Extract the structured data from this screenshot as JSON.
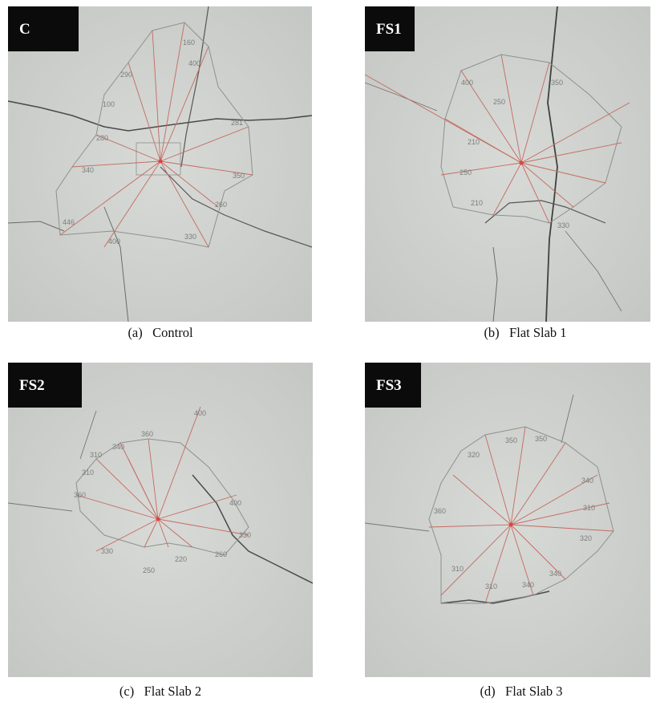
{
  "panels": [
    {
      "tag": "C",
      "caption": "(a)   Control",
      "labels": [
        "160",
        "290",
        "400",
        "100",
        "280",
        "281",
        "340",
        "350",
        "260",
        "446",
        "400",
        "330"
      ]
    },
    {
      "tag": "FS1",
      "caption": "(b)   Flat Slab 1",
      "labels": [
        "400",
        "250",
        "350",
        "210",
        "250",
        "210",
        "330"
      ]
    },
    {
      "tag": "FS2",
      "caption": "(c)   Flat Slab 2",
      "labels": [
        "400",
        "310",
        "340",
        "360",
        "310",
        "360",
        "400",
        "330",
        "330",
        "220",
        "250",
        "260"
      ]
    },
    {
      "tag": "FS3",
      "caption": "(d)   Flat Slab 3",
      "labels": [
        "320",
        "350",
        "350",
        "340",
        "310",
        "320",
        "310",
        "340",
        "310",
        "340",
        "360"
      ]
    }
  ],
  "colors": {
    "concrete": "#d4d6d3",
    "crack": "#4a4c4a",
    "pencil": "#8d918d",
    "radial": "#c46a60",
    "tag_bg": "#0b0b0b"
  }
}
